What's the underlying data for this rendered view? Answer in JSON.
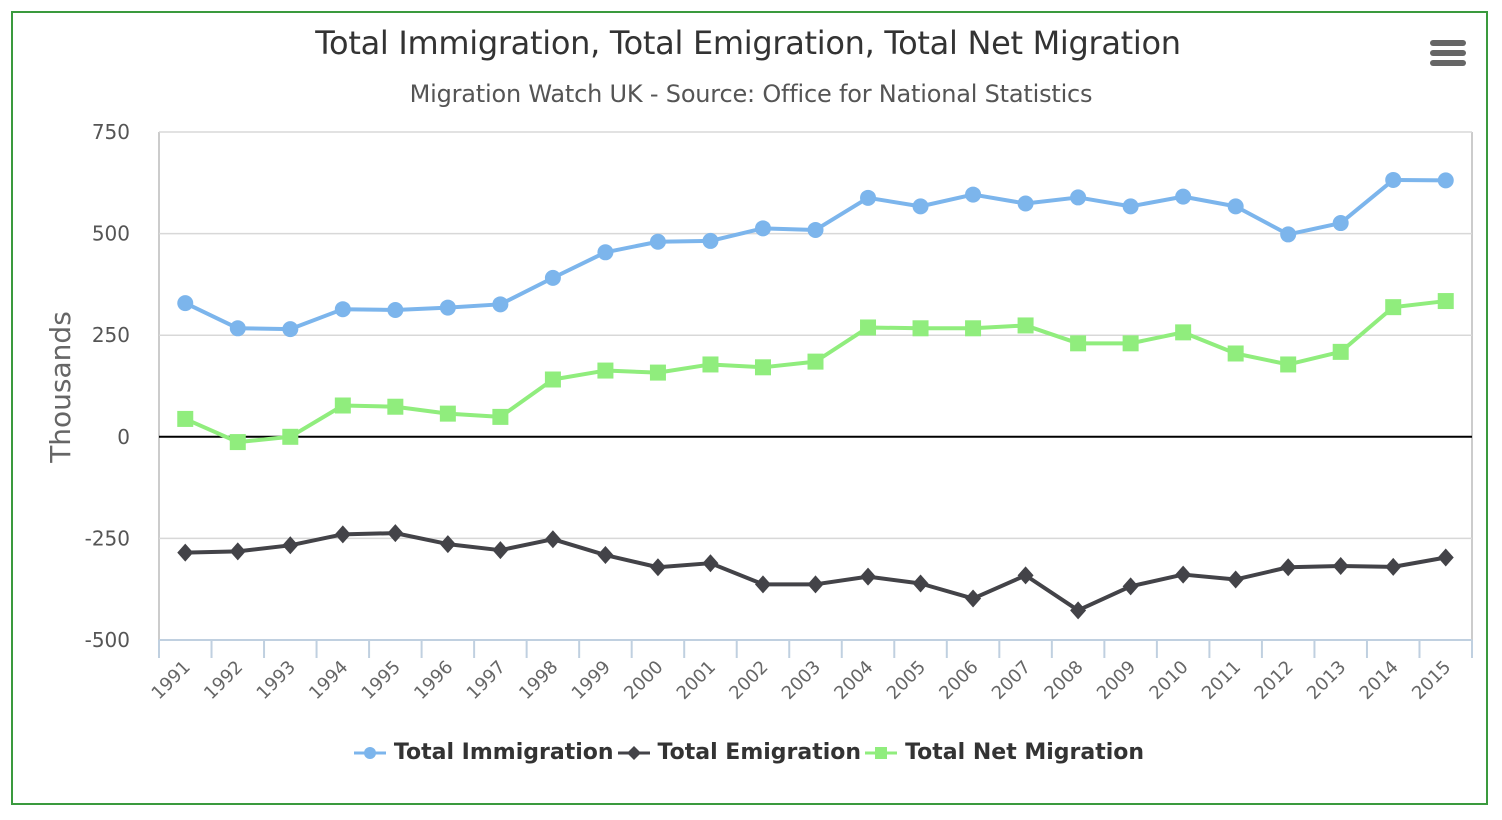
{
  "header": {
    "title": "Total Immigration, Total Emigration, Total Net Migration",
    "subtitle": "Migration Watch UK - Source: Office for National Statistics",
    "menu_icon": "hamburger-menu-icon"
  },
  "colors": {
    "immigration": "#7cb5ec",
    "emigration": "#434348",
    "net": "#90ed7d",
    "frame": "#3a9a3e",
    "grid": "#d8d8d8",
    "zero_line": "#000000",
    "axis": "#c0d0e0"
  },
  "chart_data": {
    "type": "line",
    "title": "Total Immigration, Total Emigration, Total Net Migration",
    "subtitle": "Migration Watch UK - Source: Office for National Statistics",
    "xlabel": "",
    "ylabel": "Thousands",
    "ylim": [
      -500,
      750
    ],
    "yticks": [
      "750",
      "500",
      "250",
      "0",
      "-250",
      "-500"
    ],
    "ytick_values": [
      750,
      500,
      250,
      0,
      -250,
      -500
    ],
    "grid": true,
    "legend_position": "bottom-center",
    "categories": [
      "1991",
      "1992",
      "1993",
      "1994",
      "1995",
      "1996",
      "1997",
      "1998",
      "1999",
      "2000",
      "2001",
      "2002",
      "2003",
      "2004",
      "2005",
      "2006",
      "2007",
      "2008",
      "2009",
      "2010",
      "2011",
      "2012",
      "2013",
      "2014",
      "2015"
    ],
    "series": [
      {
        "name": "Total Immigration",
        "marker": "circle",
        "values": [
          329,
          267,
          265,
          314,
          312,
          318,
          326,
          391,
          454,
          480,
          482,
          513,
          509,
          588,
          567,
          596,
          574,
          589,
          567,
          591,
          567,
          498,
          526,
          632,
          631
        ]
      },
      {
        "name": "Total Emigration",
        "marker": "diamond",
        "values": [
          -285,
          -282,
          -267,
          -240,
          -237,
          -264,
          -279,
          -252,
          -291,
          -321,
          -311,
          -363,
          -363,
          -344,
          -361,
          -398,
          -341,
          -427,
          -368,
          -339,
          -351,
          -321,
          -318,
          -320,
          -297
        ]
      },
      {
        "name": "Total Net Migration",
        "marker": "square",
        "values": [
          44,
          -13,
          0,
          77,
          74,
          57,
          49,
          141,
          163,
          158,
          178,
          171,
          185,
          269,
          267,
          267,
          274,
          230,
          230,
          257,
          205,
          178,
          209,
          319,
          334
        ]
      }
    ]
  }
}
